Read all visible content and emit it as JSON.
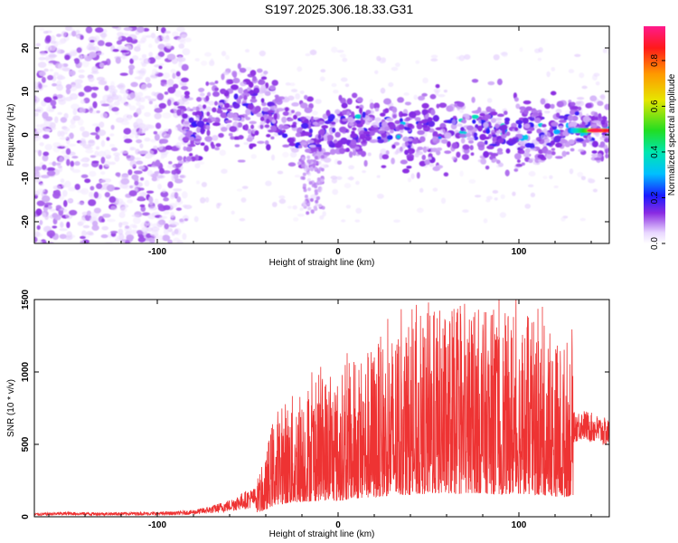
{
  "title": "S197.2025.306.18.33.G31",
  "chart_data": [
    {
      "type": "heatmap",
      "xlabel": "Height of straight line (km)",
      "ylabel": "Frequency (Hz)",
      "xlim": [
        -168,
        150
      ],
      "ylim": [
        -25,
        25
      ],
      "xticks": [
        -100,
        0,
        100
      ],
      "yticks": [
        -20,
        -10,
        0,
        10,
        20
      ],
      "colorbar": {
        "label": "Normalized spectral amplitude",
        "range": [
          0,
          0.95
        ],
        "ticks": [
          0.0,
          0.2,
          0.4,
          0.6,
          0.8
        ]
      },
      "description_values": {
        "signal_start_km": -100,
        "peak_region_km": [
          128,
          150
        ],
        "peak_amplitude": 0.9,
        "center_frequency_hz": 1
      }
    },
    {
      "type": "line",
      "xlabel": "Height of straight line (km)",
      "ylabel": "SNR (10 * v/v)",
      "xlim": [
        -168,
        150
      ],
      "ylim": [
        0,
        1500
      ],
      "xticks": [
        -100,
        0,
        100
      ],
      "yticks": [
        0,
        500,
        1000,
        1500
      ],
      "series": [
        {
          "name": "SNR",
          "color": "#ee3333",
          "x": [
            -168,
            -150,
            -130,
            -110,
            -100,
            -90,
            -80,
            -70,
            -60,
            -55,
            -50,
            -45,
            -40,
            -38,
            -35,
            -30,
            -25,
            -20,
            -15,
            -10,
            -5,
            0,
            5,
            10,
            15,
            20,
            25,
            30,
            35,
            40,
            45,
            50,
            55,
            60,
            65,
            70,
            75,
            80,
            85,
            90,
            95,
            100,
            105,
            110,
            115,
            120,
            125,
            130,
            135,
            140,
            145,
            150
          ],
          "values": [
            15,
            20,
            18,
            20,
            20,
            22,
            28,
            45,
            70,
            90,
            110,
            120,
            180,
            260,
            330,
            360,
            380,
            410,
            430,
            440,
            460,
            430,
            470,
            500,
            520,
            540,
            560,
            580,
            600,
            600,
            620,
            640,
            640,
            650,
            640,
            630,
            660,
            640,
            630,
            620,
            630,
            640,
            620,
            600,
            590,
            560,
            540,
            600,
            620,
            600,
            580,
            560
          ],
          "spikes": [
            {
              "x": 50,
              "y": 1480
            },
            {
              "x": 58,
              "y": 1300
            },
            {
              "x": 63,
              "y": 1420
            },
            {
              "x": 75,
              "y": 1380
            },
            {
              "x": 86,
              "y": 1430
            },
            {
              "x": 89,
              "y": 1500
            },
            {
              "x": 97,
              "y": 1380
            },
            {
              "x": 113,
              "y": 1450
            },
            {
              "x": 5,
              "y": 1130
            },
            {
              "x": 20,
              "y": 1000
            },
            {
              "x": -20,
              "y": 740
            }
          ]
        }
      ]
    }
  ]
}
